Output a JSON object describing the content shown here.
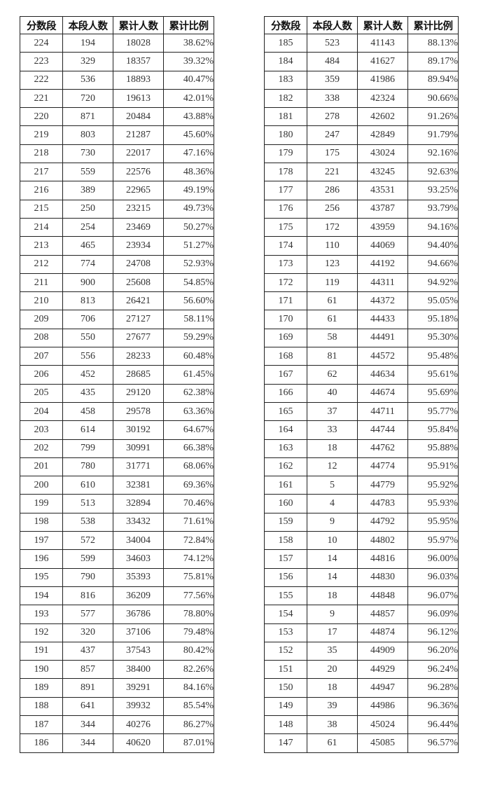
{
  "headers": [
    "分数段",
    "本段人数",
    "累计人数",
    "累计比例"
  ],
  "left_table": [
    [
      "224",
      "194",
      "18028",
      "38.62%"
    ],
    [
      "223",
      "329",
      "18357",
      "39.32%"
    ],
    [
      "222",
      "536",
      "18893",
      "40.47%"
    ],
    [
      "221",
      "720",
      "19613",
      "42.01%"
    ],
    [
      "220",
      "871",
      "20484",
      "43.88%"
    ],
    [
      "219",
      "803",
      "21287",
      "45.60%"
    ],
    [
      "218",
      "730",
      "22017",
      "47.16%"
    ],
    [
      "217",
      "559",
      "22576",
      "48.36%"
    ],
    [
      "216",
      "389",
      "22965",
      "49.19%"
    ],
    [
      "215",
      "250",
      "23215",
      "49.73%"
    ],
    [
      "214",
      "254",
      "23469",
      "50.27%"
    ],
    [
      "213",
      "465",
      "23934",
      "51.27%"
    ],
    [
      "212",
      "774",
      "24708",
      "52.93%"
    ],
    [
      "211",
      "900",
      "25608",
      "54.85%"
    ],
    [
      "210",
      "813",
      "26421",
      "56.60%"
    ],
    [
      "209",
      "706",
      "27127",
      "58.11%"
    ],
    [
      "208",
      "550",
      "27677",
      "59.29%"
    ],
    [
      "207",
      "556",
      "28233",
      "60.48%"
    ],
    [
      "206",
      "452",
      "28685",
      "61.45%"
    ],
    [
      "205",
      "435",
      "29120",
      "62.38%"
    ],
    [
      "204",
      "458",
      "29578",
      "63.36%"
    ],
    [
      "203",
      "614",
      "30192",
      "64.67%"
    ],
    [
      "202",
      "799",
      "30991",
      "66.38%"
    ],
    [
      "201",
      "780",
      "31771",
      "68.06%"
    ],
    [
      "200",
      "610",
      "32381",
      "69.36%"
    ],
    [
      "199",
      "513",
      "32894",
      "70.46%"
    ],
    [
      "198",
      "538",
      "33432",
      "71.61%"
    ],
    [
      "197",
      "572",
      "34004",
      "72.84%"
    ],
    [
      "196",
      "599",
      "34603",
      "74.12%"
    ],
    [
      "195",
      "790",
      "35393",
      "75.81%"
    ],
    [
      "194",
      "816",
      "36209",
      "77.56%"
    ],
    [
      "193",
      "577",
      "36786",
      "78.80%"
    ],
    [
      "192",
      "320",
      "37106",
      "79.48%"
    ],
    [
      "191",
      "437",
      "37543",
      "80.42%"
    ],
    [
      "190",
      "857",
      "38400",
      "82.26%"
    ],
    [
      "189",
      "891",
      "39291",
      "84.16%"
    ],
    [
      "188",
      "641",
      "39932",
      "85.54%"
    ],
    [
      "187",
      "344",
      "40276",
      "86.27%"
    ],
    [
      "186",
      "344",
      "40620",
      "87.01%"
    ]
  ],
  "right_table": [
    [
      "185",
      "523",
      "41143",
      "88.13%"
    ],
    [
      "184",
      "484",
      "41627",
      "89.17%"
    ],
    [
      "183",
      "359",
      "41986",
      "89.94%"
    ],
    [
      "182",
      "338",
      "42324",
      "90.66%"
    ],
    [
      "181",
      "278",
      "42602",
      "91.26%"
    ],
    [
      "180",
      "247",
      "42849",
      "91.79%"
    ],
    [
      "179",
      "175",
      "43024",
      "92.16%"
    ],
    [
      "178",
      "221",
      "43245",
      "92.63%"
    ],
    [
      "177",
      "286",
      "43531",
      "93.25%"
    ],
    [
      "176",
      "256",
      "43787",
      "93.79%"
    ],
    [
      "175",
      "172",
      "43959",
      "94.16%"
    ],
    [
      "174",
      "110",
      "44069",
      "94.40%"
    ],
    [
      "173",
      "123",
      "44192",
      "94.66%"
    ],
    [
      "172",
      "119",
      "44311",
      "94.92%"
    ],
    [
      "171",
      "61",
      "44372",
      "95.05%"
    ],
    [
      "170",
      "61",
      "44433",
      "95.18%"
    ],
    [
      "169",
      "58",
      "44491",
      "95.30%"
    ],
    [
      "168",
      "81",
      "44572",
      "95.48%"
    ],
    [
      "167",
      "62",
      "44634",
      "95.61%"
    ],
    [
      "166",
      "40",
      "44674",
      "95.69%"
    ],
    [
      "165",
      "37",
      "44711",
      "95.77%"
    ],
    [
      "164",
      "33",
      "44744",
      "95.84%"
    ],
    [
      "163",
      "18",
      "44762",
      "95.88%"
    ],
    [
      "162",
      "12",
      "44774",
      "95.91%"
    ],
    [
      "161",
      "5",
      "44779",
      "95.92%"
    ],
    [
      "160",
      "4",
      "44783",
      "95.93%"
    ],
    [
      "159",
      "9",
      "44792",
      "95.95%"
    ],
    [
      "158",
      "10",
      "44802",
      "95.97%"
    ],
    [
      "157",
      "14",
      "44816",
      "96.00%"
    ],
    [
      "156",
      "14",
      "44830",
      "96.03%"
    ],
    [
      "155",
      "18",
      "44848",
      "96.07%"
    ],
    [
      "154",
      "9",
      "44857",
      "96.09%"
    ],
    [
      "153",
      "17",
      "44874",
      "96.12%"
    ],
    [
      "152",
      "35",
      "44909",
      "96.20%"
    ],
    [
      "151",
      "20",
      "44929",
      "96.24%"
    ],
    [
      "150",
      "18",
      "44947",
      "96.28%"
    ],
    [
      "149",
      "39",
      "44986",
      "96.36%"
    ],
    [
      "148",
      "38",
      "45024",
      "96.44%"
    ],
    [
      "147",
      "61",
      "45085",
      "96.57%"
    ]
  ]
}
